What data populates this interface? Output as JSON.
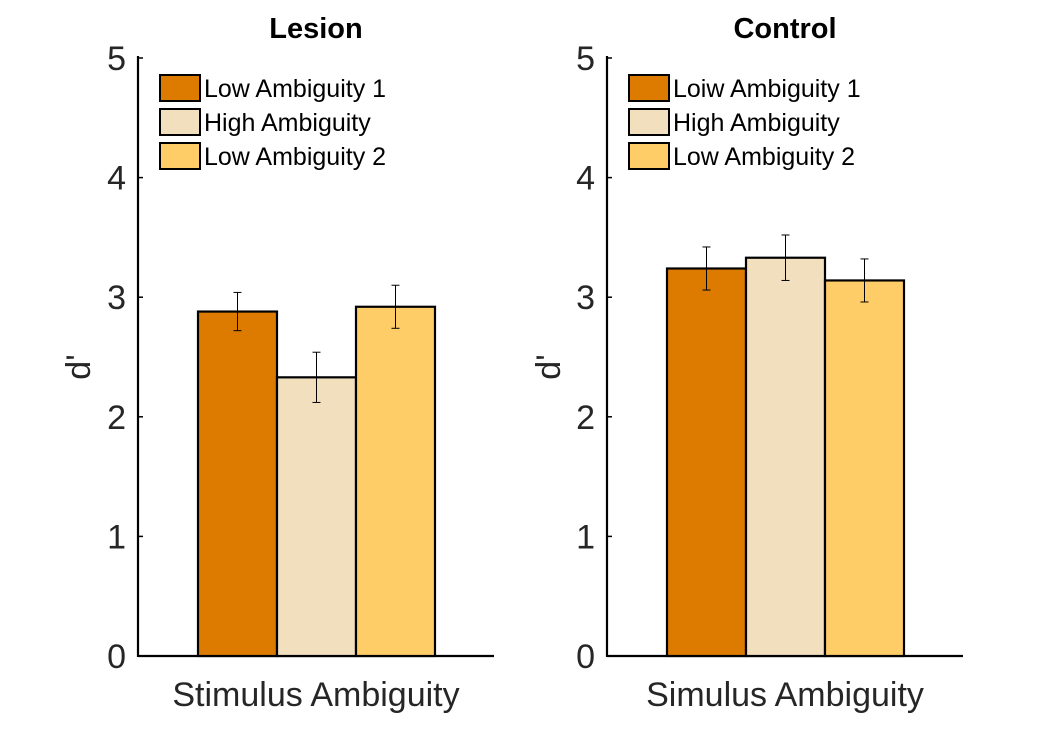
{
  "chart_data": [
    {
      "type": "bar",
      "title": "Lesion",
      "xlabel": "Stimulus Ambiguity",
      "ylabel": "d'",
      "ylim": [
        0,
        5
      ],
      "yticks": [
        "0",
        "1",
        "2",
        "3",
        "4",
        "5"
      ],
      "grid": false,
      "legend_position": "top-left",
      "series": [
        {
          "name": "Low Ambiguity 1",
          "value": 2.88,
          "error": 0.16,
          "color": "#dd7b00"
        },
        {
          "name": "High Ambiguity",
          "value": 2.33,
          "error": 0.21,
          "color": "#f1dfbe"
        },
        {
          "name": "Low Ambiguity 2",
          "value": 2.92,
          "error": 0.18,
          "color": "#ffcd68"
        }
      ]
    },
    {
      "type": "bar",
      "title": "Control",
      "xlabel": "Simulus Ambiguity",
      "ylabel": "d'",
      "ylim": [
        0,
        5
      ],
      "yticks": [
        "0",
        "1",
        "2",
        "3",
        "4",
        "5"
      ],
      "grid": false,
      "legend_position": "top-left",
      "series": [
        {
          "name": "Loiw Ambiguity 1",
          "value": 3.24,
          "error": 0.18,
          "color": "#dd7b00"
        },
        {
          "name": "High Ambiguity",
          "value": 3.33,
          "error": 0.19,
          "color": "#f1dfbe"
        },
        {
          "name": "Low Ambiguity 2",
          "value": 3.14,
          "error": 0.18,
          "color": "#ffcd68"
        }
      ]
    }
  ]
}
